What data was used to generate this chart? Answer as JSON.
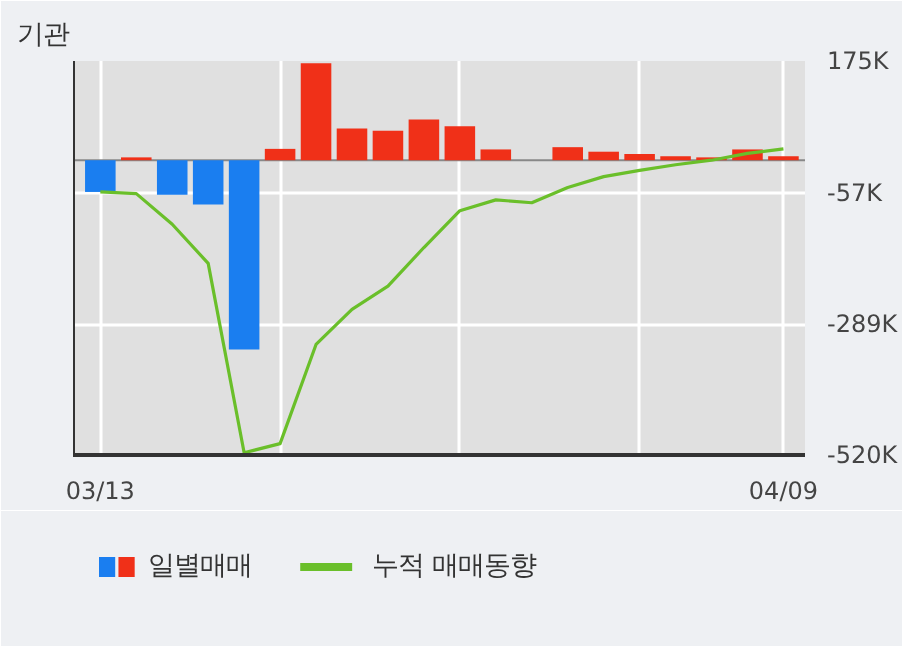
{
  "chart_data": {
    "type": "bar",
    "title": "기관",
    "categories": [
      "03/13",
      null,
      null,
      null,
      null,
      null,
      null,
      null,
      null,
      null,
      null,
      null,
      null,
      null,
      null,
      null,
      null,
      null,
      null,
      "04/09"
    ],
    "series": [
      {
        "name": "일별매매",
        "colors": [
          "#1a7ef0",
          "#f03018",
          "#1a7ef0",
          "#1a7ef0",
          "#1a7ef0",
          "#f03018",
          "#f03018",
          "#f03018",
          "#f03018",
          "#f03018",
          "#f03018",
          "#f03018",
          "#f03018",
          "#f03018",
          "#f03018",
          "#f03018",
          "#f03018",
          "#f03018",
          "#f03018",
          "#f03018"
        ],
        "values": [
          -56000,
          5000,
          -61000,
          -78000,
          -334000,
          20000,
          171000,
          56000,
          52000,
          72000,
          60000,
          19000,
          0,
          23000,
          15000,
          11000,
          7000,
          5000,
          19000,
          7000
        ]
      },
      {
        "name": "누적 매매동향",
        "type": "line",
        "color": "#6abf2a",
        "values": [
          -56000,
          -59000,
          -113000,
          -182000,
          -516000,
          -500000,
          -325000,
          -263000,
          -222000,
          -154000,
          -89000,
          -70000,
          -75000,
          -48000,
          -29000,
          -18000,
          -8000,
          0,
          12000,
          20000
        ]
      }
    ],
    "ylim": [
      -520000,
      175000
    ],
    "yticks": [
      {
        "value": 175000,
        "label": "175K"
      },
      {
        "value": -57000,
        "label": "-57K"
      },
      {
        "value": -289000,
        "label": "-289K"
      },
      {
        "value": -520000,
        "label": "-520K"
      }
    ],
    "grid": true,
    "legend": "bottom"
  }
}
